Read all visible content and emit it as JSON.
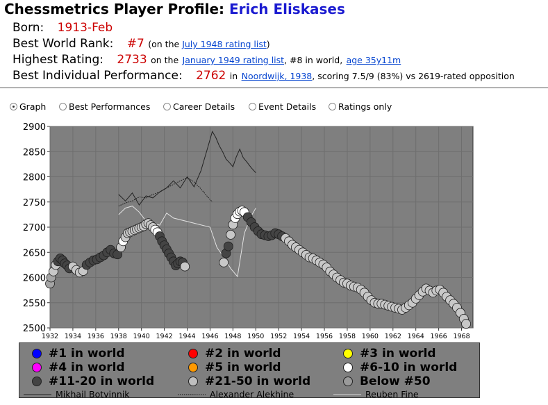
{
  "header": {
    "title_prefix": "Chessmetrics Player Profile:",
    "player_name": "Erich Eliskases"
  },
  "info": {
    "born_label": "Born:",
    "born_value": "1913-Feb",
    "rank_label": "Best World Rank:",
    "rank_value": "#7",
    "rank_pre": "(on the",
    "rank_link": "July 1948 rating list",
    "rank_post": ")",
    "high_label": "Highest Rating:",
    "high_value": "2733",
    "high_pre": "on the",
    "high_link": "January 1949 rating list",
    "high_mid": ", #8 in world,",
    "high_age_link": "age 35y11m",
    "perf_label": "Best Individual Performance:",
    "perf_value": "2762",
    "perf_pre": "in",
    "perf_link": "Noordwijk, 1938",
    "perf_post": ", scoring 7.5/9 (83%) vs 2619-rated opposition"
  },
  "view_options": [
    {
      "label": "Graph",
      "selected": true
    },
    {
      "label": "Best Performances",
      "selected": false
    },
    {
      "label": "Career Details",
      "selected": false
    },
    {
      "label": "Event Details",
      "selected": false
    },
    {
      "label": "Ratings only",
      "selected": false
    }
  ],
  "legend": {
    "ranks": [
      {
        "label": "#1 in world",
        "color": "#0000ff"
      },
      {
        "label": "#2 in world",
        "color": "#ff0000"
      },
      {
        "label": "#3 in world",
        "color": "#ffff00"
      },
      {
        "label": "#4 in world",
        "color": "#ff00ff"
      },
      {
        "label": "#5 in world",
        "color": "#ff9900"
      },
      {
        "label": "#6-10 in world",
        "color": "#ffffff"
      },
      {
        "label": "#11-20 in world",
        "color": "#444444"
      },
      {
        "label": "#21-50 in world",
        "color": "#bfbfbf"
      },
      {
        "label": "Below #50",
        "color": "#9a9a9a"
      }
    ],
    "comparisons": [
      {
        "label": "Mikhail Botvinnik",
        "style": "solid"
      },
      {
        "label": "Alexander Alekhine",
        "style": "dotted"
      },
      {
        "label": "Reuben Fine",
        "style": "light"
      }
    ]
  },
  "chart_data": {
    "type": "scatter",
    "xlim": [
      1932,
      1969
    ],
    "ylim": [
      2500,
      2900
    ],
    "x_ticks": [
      1932,
      1934,
      1936,
      1938,
      1940,
      1942,
      1944,
      1946,
      1948,
      1950,
      1952,
      1954,
      1956,
      1958,
      1960,
      1962,
      1964,
      1966,
      1968
    ],
    "y_ticks": [
      2500,
      2550,
      2600,
      2650,
      2700,
      2750,
      2800,
      2850,
      2900
    ],
    "plot_background": "#7f7f7f",
    "grid": true,
    "series": [
      {
        "name": "Erich Eliskases",
        "x": [
          1932.0,
          1932.1,
          1932.3,
          1932.5,
          1932.7,
          1932.9,
          1933.1,
          1933.3,
          1933.5,
          1933.7,
          1934.0,
          1934.3,
          1934.6,
          1934.9,
          1935.2,
          1935.5,
          1935.8,
          1936.1,
          1936.4,
          1936.7,
          1937.0,
          1937.3,
          1937.6,
          1937.9,
          1938.2,
          1938.4,
          1938.6,
          1938.8,
          1939.0,
          1939.2,
          1939.4,
          1939.6,
          1939.8,
          1940.0,
          1940.2,
          1940.4,
          1940.6,
          1940.8,
          1941.0,
          1941.2,
          1941.4,
          1941.6,
          1941.8,
          1942.0,
          1942.2,
          1942.4,
          1942.6,
          1942.8,
          1943.0,
          1943.2,
          1943.4,
          1943.6,
          1943.8,
          1947.2,
          1947.4,
          1947.6,
          1947.8,
          1948.0,
          1948.2,
          1948.4,
          1948.6,
          1948.8,
          1949.0,
          1949.3,
          1949.6,
          1949.9,
          1950.2,
          1950.5,
          1950.8,
          1951.1,
          1951.4,
          1951.7,
          1952.0,
          1952.3,
          1952.6,
          1952.9,
          1953.2,
          1953.5,
          1953.8,
          1954.1,
          1954.4,
          1954.7,
          1955.0,
          1955.3,
          1955.6,
          1955.9,
          1956.2,
          1956.5,
          1956.8,
          1957.1,
          1957.4,
          1957.7,
          1958.0,
          1958.3,
          1958.6,
          1958.9,
          1959.2,
          1959.5,
          1959.8,
          1960.1,
          1960.4,
          1960.7,
          1961.0,
          1961.3,
          1961.6,
          1961.9,
          1962.2,
          1962.5,
          1962.8,
          1963.1,
          1963.4,
          1963.7,
          1964.0,
          1964.3,
          1964.6,
          1964.9,
          1965.2,
          1965.5,
          1965.8,
          1966.1,
          1966.4,
          1966.7,
          1967.0,
          1967.3,
          1967.6,
          1967.9,
          1968.2,
          1968.4
        ],
        "y": [
          2588,
          2600,
          2612,
          2625,
          2632,
          2638,
          2634,
          2628,
          2624,
          2618,
          2622,
          2615,
          2610,
          2613,
          2625,
          2630,
          2634,
          2636,
          2640,
          2644,
          2650,
          2655,
          2648,
          2646,
          2660,
          2672,
          2680,
          2688,
          2690,
          2692,
          2694,
          2696,
          2698,
          2700,
          2702,
          2706,
          2708,
          2704,
          2700,
          2695,
          2690,
          2682,
          2672,
          2664,
          2656,
          2648,
          2640,
          2632,
          2624,
          2628,
          2632,
          2630,
          2622,
          2630,
          2648,
          2662,
          2685,
          2705,
          2718,
          2726,
          2731,
          2733,
          2730,
          2720,
          2710,
          2700,
          2692,
          2686,
          2684,
          2682,
          2684,
          2688,
          2686,
          2682,
          2678,
          2672,
          2665,
          2660,
          2655,
          2650,
          2645,
          2640,
          2638,
          2634,
          2630,
          2626,
          2620,
          2612,
          2606,
          2600,
          2595,
          2590,
          2588,
          2584,
          2582,
          2580,
          2576,
          2570,
          2562,
          2555,
          2550,
          2548,
          2548,
          2546,
          2544,
          2542,
          2540,
          2538,
          2536,
          2540,
          2545,
          2550,
          2558,
          2565,
          2572,
          2578,
          2574,
          2570,
          2574,
          2576,
          2570,
          2562,
          2555,
          2548,
          2540,
          2530,
          2518,
          2508
        ],
        "rank_groups": [
          "below50",
          "below50",
          "21-50",
          "21-50",
          "11-20",
          "11-20",
          "11-20",
          "11-20",
          "11-20",
          "11-20",
          "21-50",
          "21-50",
          "21-50",
          "21-50",
          "11-20",
          "11-20",
          "11-20",
          "11-20",
          "11-20",
          "11-20",
          "11-20",
          "11-20",
          "11-20",
          "11-20",
          "21-50",
          "6-10",
          "21-50",
          "21-50",
          "21-50",
          "21-50",
          "21-50",
          "21-50",
          "21-50",
          "21-50",
          "21-50",
          "21-50",
          "21-50",
          "21-50",
          "21-50",
          "6-10",
          "6-10",
          "11-20",
          "11-20",
          "11-20",
          "11-20",
          "11-20",
          "11-20",
          "11-20",
          "11-20",
          "11-20",
          "11-20",
          "11-20",
          "21-50",
          "21-50",
          "11-20",
          "11-20",
          "21-50",
          "21-50",
          "6-10",
          "6-10",
          "6-10",
          "6-10",
          "6-10",
          "11-20",
          "11-20",
          "11-20",
          "11-20",
          "11-20",
          "11-20",
          "11-20",
          "11-20",
          "11-20",
          "11-20",
          "11-20",
          "21-50",
          "21-50",
          "21-50",
          "21-50",
          "21-50",
          "21-50",
          "21-50",
          "21-50",
          "21-50",
          "21-50",
          "21-50",
          "21-50",
          "21-50",
          "21-50",
          "21-50",
          "21-50",
          "21-50",
          "21-50",
          "21-50",
          "21-50",
          "21-50",
          "21-50",
          "21-50",
          "21-50",
          "21-50",
          "21-50",
          "21-50",
          "21-50",
          "21-50",
          "21-50",
          "21-50",
          "21-50",
          "21-50",
          "21-50",
          "21-50",
          "21-50",
          "21-50",
          "21-50",
          "21-50",
          "21-50",
          "21-50",
          "21-50",
          "21-50",
          "21-50",
          "21-50",
          "21-50",
          "21-50",
          "21-50",
          "21-50",
          "21-50",
          "21-50",
          "21-50",
          "21-50",
          "21-50"
        ]
      },
      {
        "name": "Mikhail Botvinnik",
        "x": [
          1938.0,
          1938.6,
          1939.2,
          1939.8,
          1940.4,
          1941.0,
          1941.6,
          1942.2,
          1942.8,
          1943.4,
          1944.0,
          1944.6,
          1945.2,
          1945.8,
          1946.2,
          1946.5,
          1946.8,
          1947.1,
          1947.4,
          1947.7,
          1948.0,
          1948.3,
          1948.6,
          1948.9,
          1949.2,
          1949.6,
          1950.0
        ],
        "y": [
          2765,
          2752,
          2768,
          2744,
          2762,
          2758,
          2770,
          2778,
          2792,
          2778,
          2800,
          2780,
          2812,
          2858,
          2890,
          2878,
          2862,
          2850,
          2835,
          2828,
          2820,
          2840,
          2855,
          2838,
          2830,
          2818,
          2808
        ]
      },
      {
        "name": "Alexander Alekhine",
        "x": [
          1938.0,
          1938.6,
          1939.2,
          1939.8,
          1940.4,
          1941.0,
          1941.6,
          1942.2,
          1942.8,
          1943.4,
          1944.0,
          1944.6,
          1945.2,
          1945.8,
          1946.2
        ],
        "y": [
          2742,
          2748,
          2752,
          2760,
          2758,
          2765,
          2770,
          2778,
          2785,
          2792,
          2798,
          2790,
          2776,
          2760,
          2750
        ]
      },
      {
        "name": "Reuben Fine",
        "x": [
          1938.0,
          1938.6,
          1939.2,
          1939.8,
          1940.4,
          1941.0,
          1941.6,
          1942.2,
          1942.8,
          1946.0,
          1946.6,
          1947.2,
          1947.8,
          1948.4,
          1949.0,
          1949.6,
          1950.0
        ],
        "y": [
          2725,
          2738,
          2742,
          2730,
          2712,
          2708,
          2704,
          2728,
          2718,
          2700,
          2660,
          2640,
          2618,
          2602,
          2688,
          2722,
          2738
        ]
      }
    ]
  }
}
